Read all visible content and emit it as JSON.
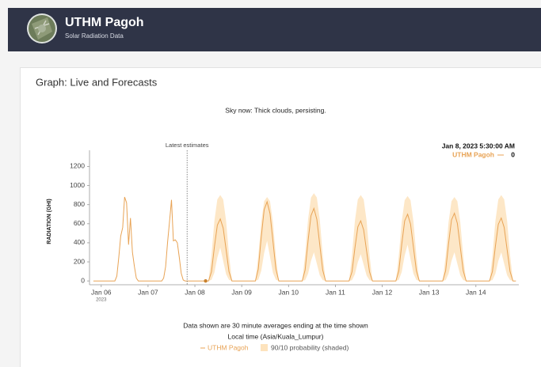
{
  "header": {
    "title": "UTHM Pagoh",
    "subtitle": "Solar Radiation Data"
  },
  "card": {
    "title": "Graph: Live and Forecasts",
    "status": "Sky now: Thick clouds, persisting."
  },
  "chart_data": {
    "type": "line",
    "y_label": "RADIATION (GHI)",
    "ylim": [
      -40,
      1370
    ],
    "yticks": [
      0,
      200,
      400,
      600,
      800,
      1000,
      1200
    ],
    "xlim": [
      "2023-01-05 18:00",
      "2023-01-14 22:00"
    ],
    "xticks": [
      {
        "value": "2023-01-06",
        "label": "Jan 06"
      },
      {
        "value": "2023-01-07",
        "label": "Jan 07"
      },
      {
        "value": "2023-01-08",
        "label": "Jan 08"
      },
      {
        "value": "2023-01-09",
        "label": "Jan 09"
      },
      {
        "value": "2023-01-10",
        "label": "Jan 10"
      },
      {
        "value": "2023-01-11",
        "label": "Jan 11"
      },
      {
        "value": "2023-01-12",
        "label": "Jan 12"
      },
      {
        "value": "2023-01-13",
        "label": "Jan 13"
      },
      {
        "value": "2023-01-14",
        "label": "Jan 14"
      }
    ],
    "xtick_sublabel": "2023",
    "annotations": [
      {
        "text": "Latest estimates",
        "x": "2023-01-07 20:00"
      }
    ],
    "hover": {
      "time": "Jan 8, 2023 5:30:00 AM",
      "series": "UTHM Pagoh",
      "value": 0
    },
    "series": [
      {
        "name": "UTHM Pagoh",
        "color": "#e8a355",
        "x": [
          "2023-01-05 20:00",
          "2023-01-06 07:00",
          "2023-01-06 08:00",
          "2023-01-06 09:00",
          "2023-01-06 10:00",
          "2023-01-06 11:00",
          "2023-01-06 12:00",
          "2023-01-06 13:00",
          "2023-01-06 14:00",
          "2023-01-06 15:00",
          "2023-01-06 16:00",
          "2023-01-06 17:00",
          "2023-01-06 18:00",
          "2023-01-06 19:00",
          "2023-01-07 07:00",
          "2023-01-07 08:00",
          "2023-01-07 09:00",
          "2023-01-07 10:00",
          "2023-01-07 11:00",
          "2023-01-07 12:00",
          "2023-01-07 13:00",
          "2023-01-07 14:00",
          "2023-01-07 15:00",
          "2023-01-07 16:00",
          "2023-01-07 17:00",
          "2023-01-07 18:00",
          "2023-01-07 19:00",
          "2023-01-07 20:00",
          "2023-01-08 05:30",
          "2023-01-08 07:00",
          "2023-01-08 08:30",
          "2023-01-08 10:00",
          "2023-01-08 11:30",
          "2023-01-08 13:00",
          "2023-01-08 14:30",
          "2023-01-08 16:00",
          "2023-01-08 17:30",
          "2023-01-08 19:00",
          "2023-01-09 07:00",
          "2023-01-09 08:30",
          "2023-01-09 10:00",
          "2023-01-09 11:30",
          "2023-01-09 13:00",
          "2023-01-09 14:30",
          "2023-01-09 16:00",
          "2023-01-09 17:30",
          "2023-01-09 19:00",
          "2023-01-10 07:00",
          "2023-01-10 08:30",
          "2023-01-10 10:00",
          "2023-01-10 11:30",
          "2023-01-10 13:00",
          "2023-01-10 14:30",
          "2023-01-10 16:00",
          "2023-01-10 17:30",
          "2023-01-10 19:00",
          "2023-01-11 07:00",
          "2023-01-11 08:30",
          "2023-01-11 10:00",
          "2023-01-11 11:30",
          "2023-01-11 13:00",
          "2023-01-11 14:30",
          "2023-01-11 16:00",
          "2023-01-11 17:30",
          "2023-01-11 19:00",
          "2023-01-12 07:00",
          "2023-01-12 08:30",
          "2023-01-12 10:00",
          "2023-01-12 11:30",
          "2023-01-12 13:00",
          "2023-01-12 14:30",
          "2023-01-12 16:00",
          "2023-01-12 17:30",
          "2023-01-12 19:00",
          "2023-01-13 07:00",
          "2023-01-13 08:30",
          "2023-01-13 10:00",
          "2023-01-13 11:30",
          "2023-01-13 13:00",
          "2023-01-13 14:30",
          "2023-01-13 16:00",
          "2023-01-13 17:30",
          "2023-01-13 19:00",
          "2023-01-14 07:00",
          "2023-01-14 08:30",
          "2023-01-14 10:00",
          "2023-01-14 11:30",
          "2023-01-14 13:00",
          "2023-01-14 14:30",
          "2023-01-14 16:00",
          "2023-01-14 17:30",
          "2023-01-14 19:00",
          "2023-01-14 20:30"
        ],
        "values": [
          0,
          0,
          50,
          250,
          470,
          560,
          880,
          820,
          380,
          660,
          300,
          150,
          30,
          0,
          0,
          30,
          150,
          400,
          620,
          850,
          420,
          430,
          400,
          250,
          80,
          10,
          0,
          0,
          0,
          0,
          98,
          358,
          585,
          650,
          553,
          325,
          98,
          0,
          0,
          125,
          457,
          747,
          830,
          706,
          415,
          125,
          0,
          0,
          114,
          418,
          684,
          760,
          646,
          380,
          114,
          0,
          0,
          95,
          347,
          567,
          630,
          536,
          315,
          95,
          0,
          0,
          105,
          385,
          630,
          700,
          595,
          350,
          105,
          0,
          0,
          107,
          391,
          639,
          710,
          604,
          355,
          107,
          0,
          0,
          99,
          363,
          594,
          660,
          561,
          330,
          99,
          0,
          0
        ]
      },
      {
        "name": "90/10 probability (shaded)",
        "color": "#fde3bd",
        "x": [
          "2023-01-08 07:00",
          "2023-01-08 08:30",
          "2023-01-08 10:00",
          "2023-01-08 11:30",
          "2023-01-08 13:00",
          "2023-01-08 14:30",
          "2023-01-08 16:00",
          "2023-01-08 17:30",
          "2023-01-08 19:00",
          "2023-01-09 07:00",
          "2023-01-09 08:30",
          "2023-01-09 10:00",
          "2023-01-09 11:30",
          "2023-01-09 13:00",
          "2023-01-09 14:30",
          "2023-01-09 16:00",
          "2023-01-09 17:30",
          "2023-01-09 19:00",
          "2023-01-10 07:00",
          "2023-01-10 08:30",
          "2023-01-10 10:00",
          "2023-01-10 11:30",
          "2023-01-10 13:00",
          "2023-01-10 14:30",
          "2023-01-10 16:00",
          "2023-01-10 17:30",
          "2023-01-10 19:00",
          "2023-01-11 07:00",
          "2023-01-11 08:30",
          "2023-01-11 10:00",
          "2023-01-11 11:30",
          "2023-01-11 13:00",
          "2023-01-11 14:30",
          "2023-01-11 16:00",
          "2023-01-11 17:30",
          "2023-01-11 19:00",
          "2023-01-12 07:00",
          "2023-01-12 08:30",
          "2023-01-12 10:00",
          "2023-01-12 11:30",
          "2023-01-12 13:00",
          "2023-01-12 14:30",
          "2023-01-12 16:00",
          "2023-01-12 17:30",
          "2023-01-12 19:00",
          "2023-01-13 07:00",
          "2023-01-13 08:30",
          "2023-01-13 10:00",
          "2023-01-13 11:30",
          "2023-01-13 13:00",
          "2023-01-13 14:30",
          "2023-01-13 16:00",
          "2023-01-13 17:30",
          "2023-01-13 19:00",
          "2023-01-14 07:00",
          "2023-01-14 08:30",
          "2023-01-14 10:00",
          "2023-01-14 11:30",
          "2023-01-14 13:00",
          "2023-01-14 14:30",
          "2023-01-14 16:00",
          "2023-01-14 17:30",
          "2023-01-14 19:00"
        ],
        "upper": [
          0,
          270,
          630,
          855,
          900,
          855,
          630,
          270,
          0,
          0,
          264,
          616,
          836,
          880,
          836,
          616,
          264,
          0,
          0,
          276,
          644,
          874,
          920,
          874,
          644,
          276,
          0,
          0,
          270,
          630,
          855,
          900,
          855,
          630,
          270,
          0,
          0,
          267,
          623,
          846,
          890,
          846,
          623,
          267,
          0,
          0,
          264,
          616,
          836,
          880,
          836,
          616,
          264,
          0,
          0,
          270,
          630,
          855,
          900,
          855,
          630,
          270,
          0
        ],
        "lower": [
          0,
          11,
          88,
          245,
          350,
          210,
          70,
          11,
          0,
          0,
          13,
          105,
          294,
          420,
          252,
          84,
          13,
          0,
          0,
          9,
          75,
          210,
          300,
          180,
          60,
          9,
          0,
          0,
          8,
          70,
          196,
          280,
          168,
          56,
          8,
          0,
          0,
          11,
          95,
          266,
          380,
          228,
          76,
          11,
          0,
          0,
          9,
          75,
          210,
          300,
          180,
          60,
          9,
          0,
          0,
          9,
          75,
          210,
          300,
          180,
          60,
          9,
          0
        ]
      }
    ],
    "notes": [
      "Data shown are 30 minute averages ending at the time shown",
      "Local time (Asia/Kuala_Lumpur)"
    ]
  }
}
